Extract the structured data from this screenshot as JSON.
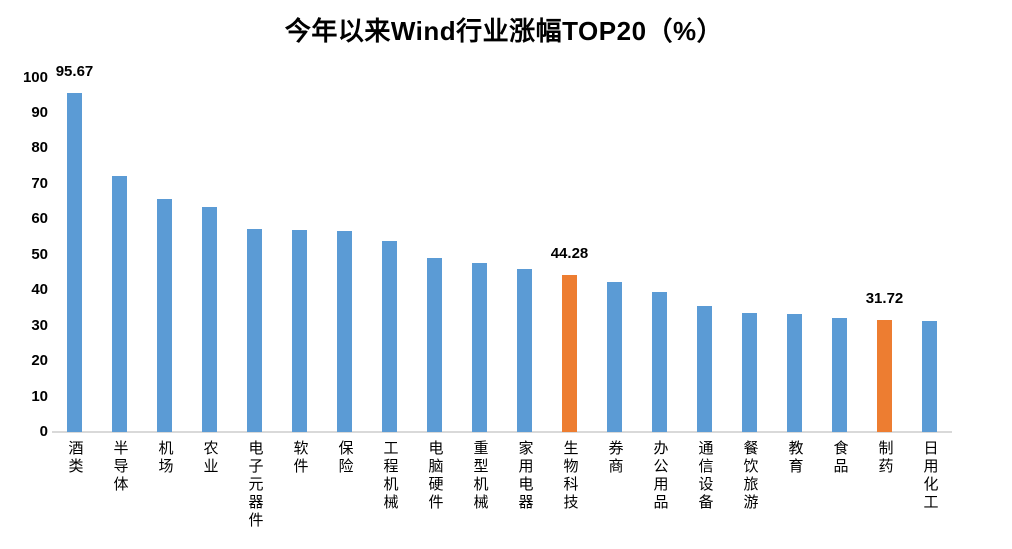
{
  "chart_data": {
    "type": "bar",
    "title": "今年以来Wind行业涨幅TOP20（%）",
    "categories": [
      "酒类",
      "半导体",
      "机场",
      "农业",
      "电子元器件",
      "软件",
      "保险",
      "工程机械",
      "电脑硬件",
      "重型机械",
      "家用电器",
      "生物科技",
      "券商",
      "办公用品",
      "通信设备",
      "餐饮旅游",
      "教育",
      "食品",
      "制药",
      "日用化工"
    ],
    "values": [
      95.67,
      72.2,
      65.8,
      63.4,
      57.2,
      57.0,
      56.7,
      53.9,
      49.0,
      47.6,
      45.9,
      44.28,
      42.2,
      39.4,
      35.5,
      33.6,
      33.4,
      32.1,
      31.72,
      31.4
    ],
    "point_labels": [
      {
        "index": 0,
        "text": "95.67"
      },
      {
        "index": 11,
        "text": "44.28"
      },
      {
        "index": 18,
        "text": "31.72"
      }
    ],
    "highlight_indices": [
      11,
      18
    ],
    "xlabel": "",
    "ylabel": "",
    "ylim": [
      0,
      100
    ],
    "yticks": [
      0,
      10,
      20,
      30,
      40,
      50,
      60,
      70,
      80,
      90,
      100
    ],
    "grid": false,
    "legend": false,
    "colors": {
      "bar": "#5B9BD5",
      "highlight": "#ED7D31",
      "axis_line": "#D9D9D9",
      "text": "#000000"
    }
  }
}
